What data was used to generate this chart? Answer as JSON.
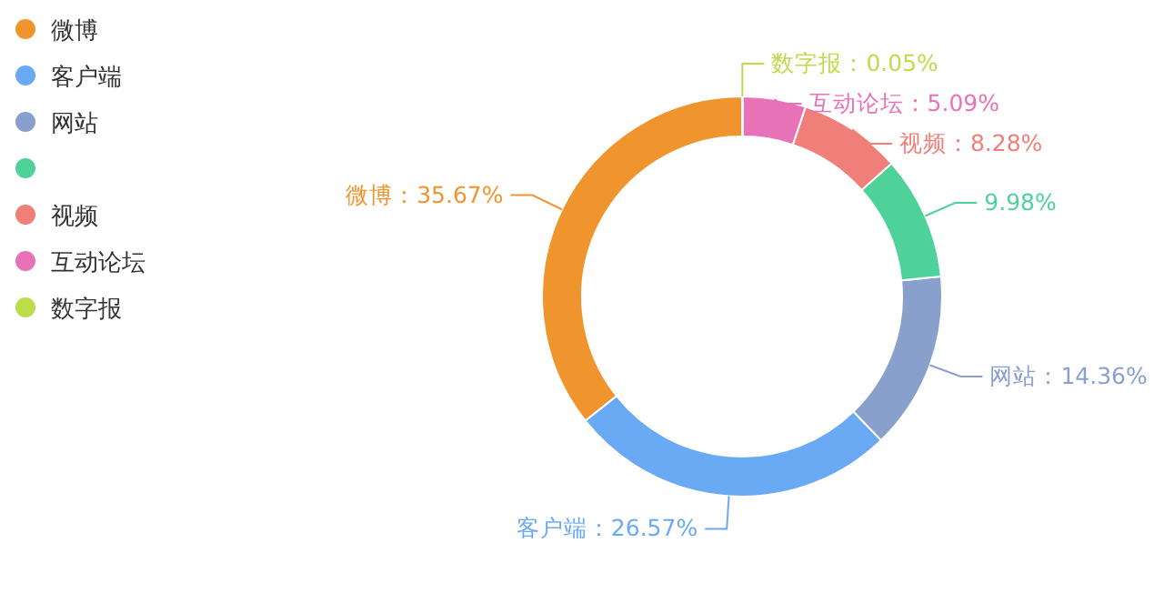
{
  "chart_data": {
    "type": "donut",
    "categories": [
      "微博",
      "客户端",
      "网站",
      null,
      "视频",
      "互动论坛",
      "数字报"
    ],
    "values": [
      35.67,
      26.57,
      14.36,
      9.98,
      8.28,
      5.09,
      0.05
    ],
    "colors": [
      "#f0952e",
      "#6aaaf5",
      "#8aa0cc",
      "#4fd19a",
      "#ef7f78",
      "#e872b8",
      "#bddc4a"
    ],
    "legend": "top left",
    "value_labels": [
      "：35.67%",
      "：26.57%",
      "：14.36%",
      "9.98%",
      "：8.28%",
      "：5.09%",
      "：0.05%"
    ]
  }
}
